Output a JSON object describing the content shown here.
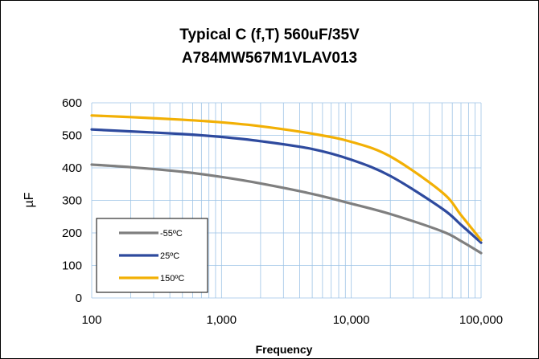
{
  "chart_data": {
    "type": "line",
    "title": [
      "Typical C (f,T) 560uF/35V",
      "A784MW567M1VLAV013"
    ],
    "xlabel": "Frequency",
    "ylabel": "µF",
    "xscale": "log",
    "xlim": [
      100,
      100000
    ],
    "ylim": [
      0,
      600
    ],
    "xticks": [
      100,
      1000,
      10000,
      100000
    ],
    "xtick_labels": [
      "100",
      "1,000",
      "10,000",
      "100,000"
    ],
    "yticks": [
      0,
      100,
      200,
      300,
      400,
      500,
      600
    ],
    "ytick_labels": [
      "0",
      "100",
      "200",
      "300",
      "400",
      "500",
      "600"
    ],
    "grid": true,
    "legend_position": "bottom-left",
    "series": [
      {
        "name": "-55ºC",
        "color": "#7f7f7f",
        "x": [
          100,
          200,
          500,
          1000,
          2000,
          5000,
          10000,
          20000,
          50000,
          70000,
          100000
        ],
        "y": [
          410,
          402,
          388,
          372,
          352,
          320,
          290,
          258,
          205,
          175,
          138
        ]
      },
      {
        "name": "25ºC",
        "color": "#2e4a9e",
        "x": [
          100,
          200,
          500,
          1000,
          2000,
          5000,
          10000,
          20000,
          50000,
          70000,
          100000
        ],
        "y": [
          518,
          512,
          504,
          495,
          482,
          458,
          425,
          375,
          275,
          225,
          170
        ]
      },
      {
        "name": "150ºC",
        "color": "#f2b005",
        "x": [
          100,
          200,
          500,
          1000,
          2000,
          5000,
          10000,
          20000,
          50000,
          70000,
          100000
        ],
        "y": [
          561,
          556,
          548,
          540,
          528,
          505,
          480,
          435,
          325,
          255,
          178
        ]
      }
    ]
  }
}
